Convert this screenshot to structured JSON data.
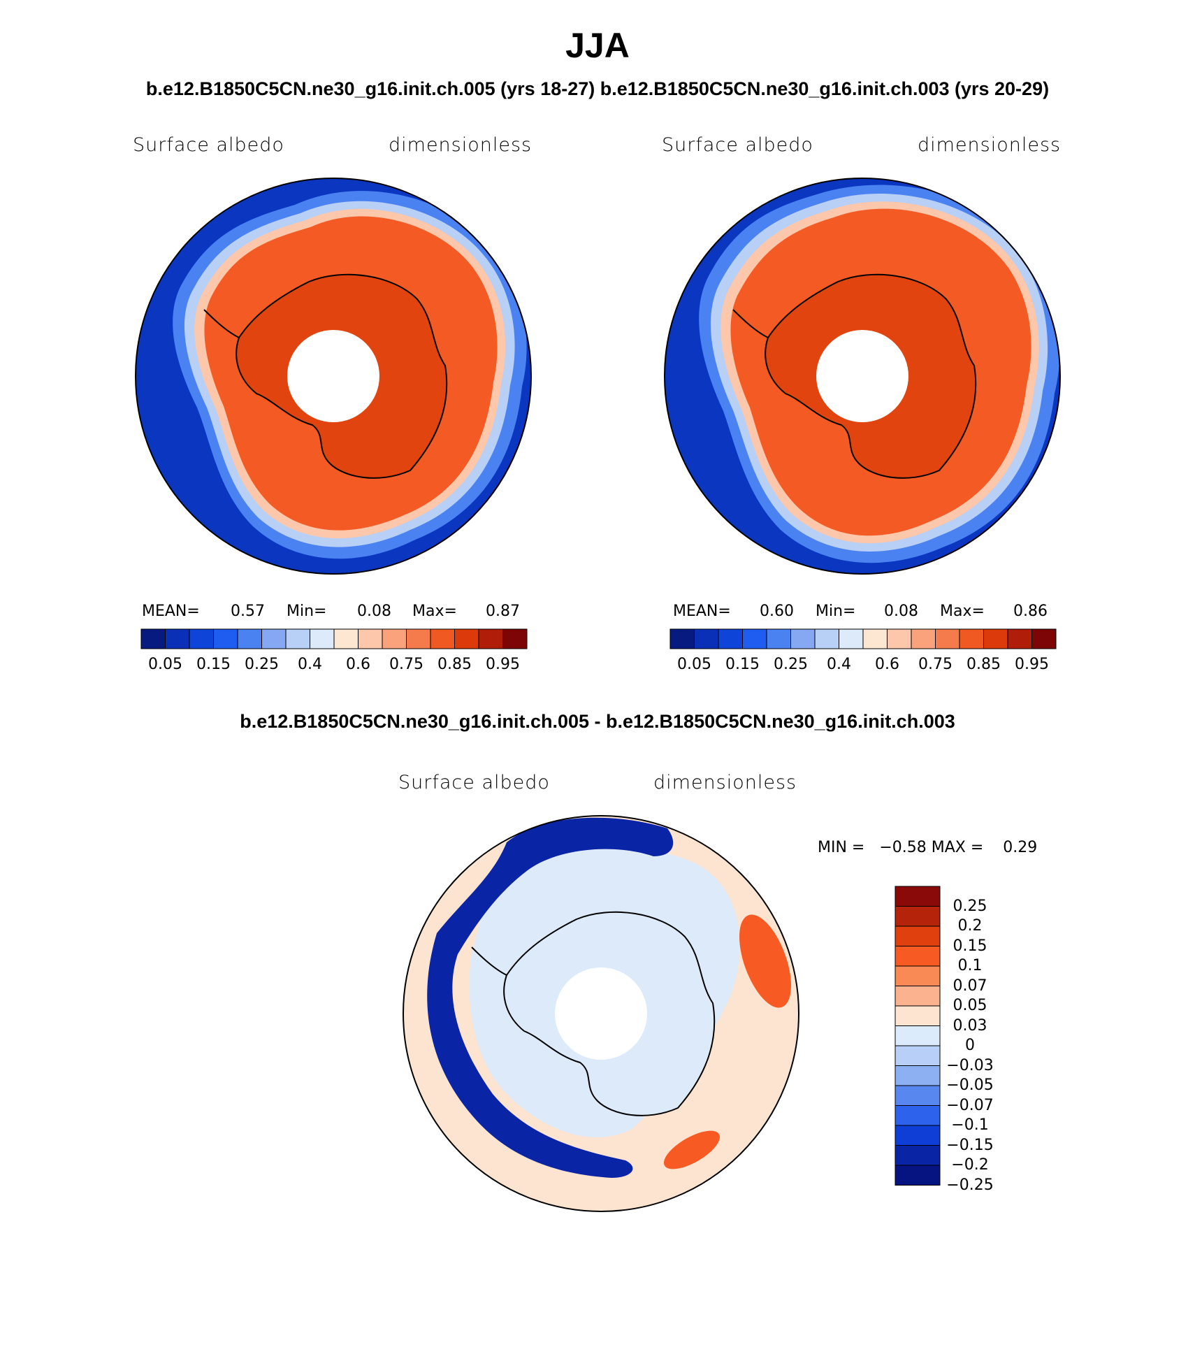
{
  "figure": {
    "title": "JJA",
    "case_title": "b.e12.B1850C5CN.ne30_g16.init.ch.005 (yrs 18-27) b.e12.B1850C5CN.ne30_g16.init.ch.003 (yrs 20-29)",
    "diff_title": "b.e12.B1850C5CN.ne30_g16.init.ch.005 - b.e12.B1850C5CN.ne30_g16.init.ch.003"
  },
  "panels": [
    {
      "variable": "Surface albedo",
      "units": "dimensionless",
      "stats": {
        "mean_label": "MEAN=",
        "mean": "0.57",
        "min_label": "Min=",
        "min": "0.08",
        "max_label": "Max=",
        "max": "0.87"
      }
    },
    {
      "variable": "Surface albedo",
      "units": "dimensionless",
      "stats": {
        "mean_label": "MEAN=",
        "mean": "0.60",
        "min_label": "Min=",
        "min": "0.08",
        "max_label": "Max=",
        "max": "0.86"
      }
    }
  ],
  "diff_panel": {
    "variable": "Surface albedo",
    "units": "dimensionless",
    "minmax": "MIN =   −0.58 MAX =    0.29"
  },
  "colorbars": {
    "abs_colors": [
      "#061a80",
      "#0a30b8",
      "#0f44d8",
      "#1f5cf0",
      "#4a82f2",
      "#86a8f2",
      "#b8cff6",
      "#dceafa",
      "#fde6d2",
      "#fcc7ab",
      "#f9a27b",
      "#f67b4c",
      "#f05a22",
      "#dc3a0a",
      "#b01d08",
      "#7e0505"
    ],
    "abs_labels": [
      "0.05",
      "0.15",
      "0.25",
      "0.4",
      "0.6",
      "0.75",
      "0.85",
      "0.95"
    ],
    "diff_colors": [
      "#8a0a0a",
      "#b5230a",
      "#e0400d",
      "#f75a22",
      "#fa8a55",
      "#fbb28f",
      "#fde4d0",
      "#dcebfb",
      "#b8d0f7",
      "#8cb0f2",
      "#5888ef",
      "#2c62ec",
      "#0f3ed6",
      "#0a24a6",
      "#051480"
    ],
    "diff_labels": [
      "0.25",
      "0.2",
      "0.15",
      "0.1",
      "0.07",
      "0.05",
      "0.03",
      "0",
      "−0.03",
      "−0.05",
      "−0.07",
      "−0.1",
      "−0.15",
      "−0.2",
      "−0.25"
    ]
  },
  "colors": {
    "ocean_blue": "#0a36c0",
    "ice_orange": "#f45a24",
    "ice_dark": "#e2440f",
    "diff_blue": "#0a24a6",
    "diff_light": "#dceafa",
    "diff_peach": "#fde4d0"
  }
}
